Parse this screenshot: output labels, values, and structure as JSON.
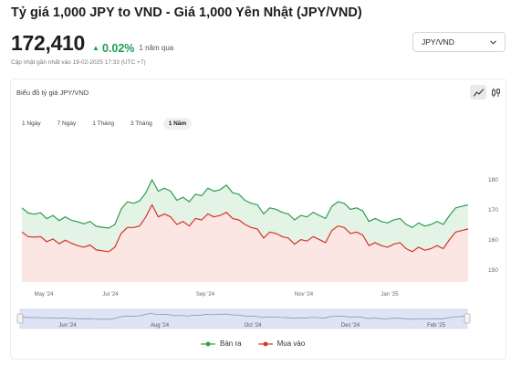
{
  "title": "Tỷ giá 1,000 JPY to VND - Giá 1,000 Yên Nhật (JPY/VND)",
  "price": "172,410",
  "change": {
    "value": "0.02%",
    "period": "1 năm qua",
    "color": "#1a9e52"
  },
  "updated": "Cập nhật gần nhất vào 19-02-2025 17:33 (UTC +7)",
  "pair_select": {
    "value": "JPY/VND",
    "icon": "chevron-down-icon"
  },
  "card": {
    "title": "Biểu đồ tỷ giá JPY/VND",
    "tools": [
      {
        "name": "line-chart-icon",
        "active": true
      },
      {
        "name": "candlestick-icon",
        "active": false
      }
    ],
    "ranges": [
      {
        "label": "1 Ngày",
        "active": false
      },
      {
        "label": "7 Ngày",
        "active": false
      },
      {
        "label": "1 Tháng",
        "active": false
      },
      {
        "label": "3 Tháng",
        "active": false
      },
      {
        "label": "1 Năm",
        "active": true
      }
    ]
  },
  "chart_data": {
    "type": "area",
    "ylim": [
      146,
      184
    ],
    "y_ticks": [
      "180",
      "170",
      "160",
      "150"
    ],
    "x_ticks": [
      "May '24",
      "Jul '24",
      "Sep '24",
      "Nov '24",
      "Jan '25"
    ],
    "navigator_ticks": [
      "Jun '24",
      "Aug '24",
      "Oct '24",
      "Dec '24",
      "Feb '25"
    ],
    "colors": {
      "sell": "#2e9e4f",
      "buy": "#d9322b",
      "sell_fill": "#e3f3e6",
      "buy_fill": "#fbe6e3"
    },
    "series": [
      {
        "name": "Bán ra",
        "values": [
          170.5,
          168.8,
          168.4,
          168.9,
          166.9,
          168.0,
          166.3,
          167.5,
          166.4,
          165.9,
          165.2,
          166.0,
          164.4,
          164.1,
          163.8,
          165.0,
          170.0,
          172.5,
          172.0,
          172.8,
          175.5,
          179.8,
          176.0,
          177.0,
          176.0,
          173.0,
          174.0,
          172.5,
          175.0,
          174.5,
          177.0,
          176.0,
          176.5,
          178.0,
          175.5,
          175.0,
          173.0,
          172.0,
          171.5,
          168.5,
          170.5,
          170.0,
          169.0,
          168.5,
          166.5,
          168.0,
          167.5,
          169.0,
          168.0,
          167.0,
          171.0,
          172.5,
          172.0,
          170.0,
          170.5,
          169.5,
          166.0,
          167.0,
          166.0,
          165.5,
          166.5,
          167.0,
          165.0,
          164.0,
          165.5,
          164.5,
          165.0,
          166.0,
          165.0,
          168.0,
          170.5,
          171.0,
          171.5
        ]
      },
      {
        "name": "Mua vào",
        "values": [
          162.5,
          161.0,
          160.8,
          161.0,
          159.3,
          160.2,
          158.6,
          159.8,
          158.8,
          158.0,
          157.5,
          158.2,
          156.6,
          156.3,
          156.0,
          157.5,
          162.0,
          164.0,
          164.0,
          164.5,
          167.5,
          171.5,
          167.5,
          168.5,
          167.5,
          165.0,
          166.0,
          164.5,
          167.0,
          166.5,
          168.5,
          167.5,
          168.0,
          169.0,
          167.0,
          166.5,
          165.0,
          164.0,
          163.5,
          160.5,
          162.5,
          162.0,
          161.0,
          160.5,
          158.5,
          160.0,
          159.5,
          161.0,
          160.0,
          159.0,
          163.0,
          164.5,
          164.0,
          162.0,
          162.5,
          161.5,
          158.0,
          159.0,
          158.0,
          157.5,
          158.5,
          159.0,
          157.0,
          156.0,
          157.5,
          156.5,
          157.0,
          158.0,
          157.0,
          160.0,
          162.5,
          163.0,
          163.5
        ]
      }
    ]
  }
}
